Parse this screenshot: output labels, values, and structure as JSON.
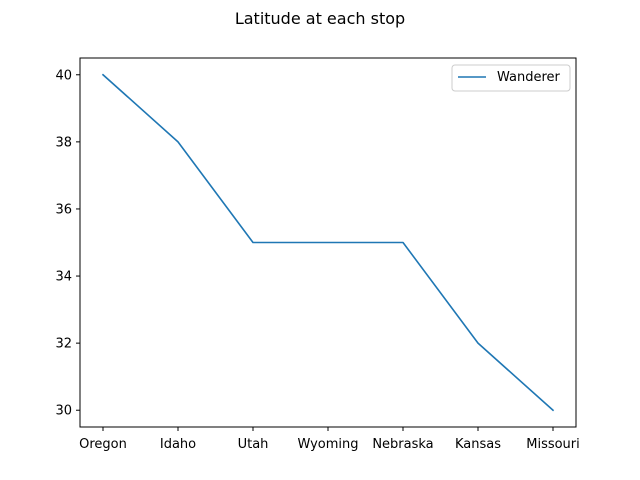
{
  "chart_data": {
    "type": "line",
    "title": "Latitude at each stop",
    "xlabel": "",
    "ylabel": "",
    "categories": [
      "Oregon",
      "Idaho",
      "Utah",
      "Wyoming",
      "Nebraska",
      "Kansas",
      "Missouri"
    ],
    "series": [
      {
        "name": "Wanderer",
        "values": [
          40,
          38,
          35,
          35,
          35,
          32,
          30
        ],
        "color": "#1f77b4"
      }
    ],
    "yticks": [
      30,
      32,
      34,
      36,
      38,
      40
    ],
    "ylim": [
      29.5,
      40.5
    ],
    "grid": false,
    "legend_position": "top-right"
  }
}
